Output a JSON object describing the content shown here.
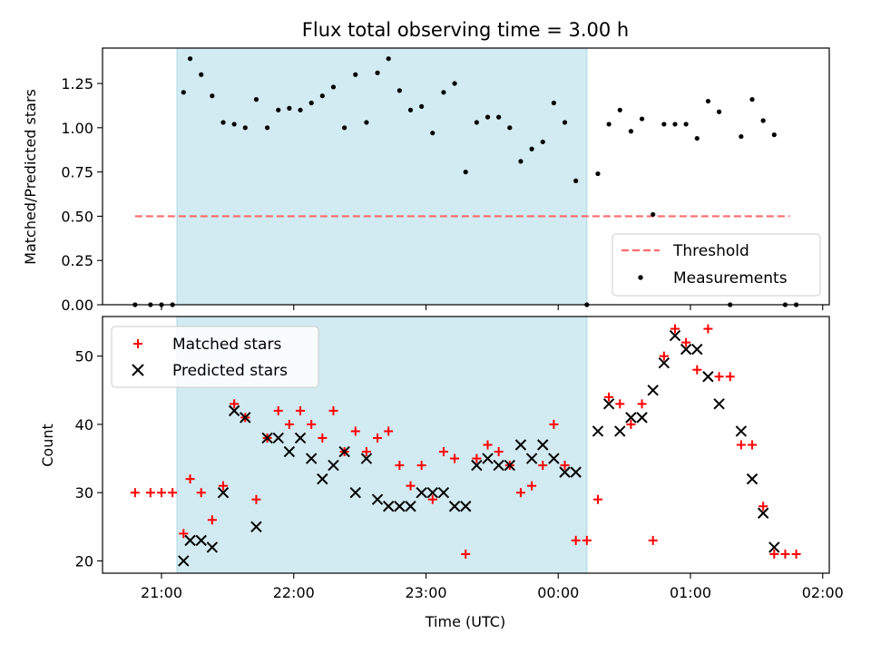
{
  "chart_data": [
    {
      "type": "scatter",
      "title": "Flux total observing time = 3.00 h",
      "xlabel": "",
      "ylabel": "Matched/Predicted stars",
      "ylim": [
        0,
        1.45
      ],
      "yticks": [
        "0.00",
        "0.25",
        "0.50",
        "0.75",
        "1.00",
        "1.25"
      ],
      "grid": false,
      "legend": {
        "placement": "lower right",
        "entries": [
          "Threshold",
          "Measurements"
        ]
      },
      "shaded_interval": {
        "start": "21:07",
        "end": "00:13",
        "color": "#add8e6"
      },
      "threshold": {
        "name": "Threshold",
        "value": 0.5,
        "x_start": "20:48",
        "x_end": "01:45",
        "color": "#ff6b6b"
      },
      "series": [
        {
          "name": "Measurements",
          "color": "#000000",
          "points": [
            [
              "20:48",
              0.0
            ],
            [
              "20:55",
              0.0
            ],
            [
              "21:00",
              0.0
            ],
            [
              "21:05",
              0.0
            ],
            [
              "21:10",
              1.2
            ],
            [
              "21:13",
              1.39
            ],
            [
              "21:18",
              1.3
            ],
            [
              "21:23",
              1.18
            ],
            [
              "21:28",
              1.03
            ],
            [
              "21:33",
              1.02
            ],
            [
              "21:38",
              1.0
            ],
            [
              "21:43",
              1.16
            ],
            [
              "21:48",
              1.0
            ],
            [
              "21:53",
              1.1
            ],
            [
              "21:58",
              1.11
            ],
            [
              "22:03",
              1.1
            ],
            [
              "22:08",
              1.14
            ],
            [
              "22:13",
              1.18
            ],
            [
              "22:18",
              1.23
            ],
            [
              "22:23",
              1.0
            ],
            [
              "22:28",
              1.3
            ],
            [
              "22:33",
              1.03
            ],
            [
              "22:38",
              1.31
            ],
            [
              "22:43",
              1.39
            ],
            [
              "22:48",
              1.21
            ],
            [
              "22:53",
              1.1
            ],
            [
              "22:58",
              1.12
            ],
            [
              "23:03",
              0.97
            ],
            [
              "23:08",
              1.2
            ],
            [
              "23:13",
              1.25
            ],
            [
              "23:18",
              0.75
            ],
            [
              "23:23",
              1.03
            ],
            [
              "23:28",
              1.06
            ],
            [
              "23:33",
              1.06
            ],
            [
              "23:38",
              1.0
            ],
            [
              "23:43",
              0.81
            ],
            [
              "23:48",
              0.88
            ],
            [
              "23:53",
              0.92
            ],
            [
              "23:58",
              1.14
            ],
            [
              "00:03",
              1.03
            ],
            [
              "00:08",
              0.7
            ],
            [
              "00:13",
              0.0
            ],
            [
              "00:18",
              0.74
            ],
            [
              "00:23",
              1.02
            ],
            [
              "00:28",
              1.1
            ],
            [
              "00:33",
              0.98
            ],
            [
              "00:38",
              1.05
            ],
            [
              "00:43",
              0.51
            ],
            [
              "00:48",
              1.02
            ],
            [
              "00:53",
              1.02
            ],
            [
              "00:58",
              1.02
            ],
            [
              "01:03",
              0.94
            ],
            [
              "01:08",
              1.15
            ],
            [
              "01:13",
              1.09
            ],
            [
              "01:18",
              0.0
            ],
            [
              "01:23",
              0.95
            ],
            [
              "01:28",
              1.16
            ],
            [
              "01:33",
              1.04
            ],
            [
              "01:38",
              0.96
            ],
            [
              "01:43",
              0.0
            ],
            [
              "01:48",
              0.0
            ]
          ]
        }
      ]
    },
    {
      "type": "scatter",
      "title": "",
      "xlabel": "Time (UTC)",
      "ylabel": "Count",
      "ylim": [
        18.2,
        55.8
      ],
      "yticks": [
        "20",
        "30",
        "40",
        "50"
      ],
      "xticks": [
        "21:00",
        "22:00",
        "23:00",
        "00:00",
        "01:00",
        "02:00"
      ],
      "grid": false,
      "legend": {
        "placement": "upper left",
        "entries": [
          "Matched stars",
          "Predicted stars"
        ]
      },
      "shaded_interval": {
        "start": "21:07",
        "end": "00:13",
        "color": "#add8e6"
      },
      "series": [
        {
          "name": "Matched stars",
          "marker": "plus",
          "color": "#ff0000",
          "points": [
            [
              "20:48",
              30
            ],
            [
              "20:55",
              30
            ],
            [
              "21:00",
              30
            ],
            [
              "21:05",
              30
            ],
            [
              "21:10",
              24
            ],
            [
              "21:13",
              32
            ],
            [
              "21:18",
              30
            ],
            [
              "21:23",
              26
            ],
            [
              "21:28",
              31
            ],
            [
              "21:33",
              43
            ],
            [
              "21:38",
              41
            ],
            [
              "21:43",
              29
            ],
            [
              "21:48",
              38
            ],
            [
              "21:53",
              42
            ],
            [
              "21:58",
              40
            ],
            [
              "22:03",
              42
            ],
            [
              "22:08",
              40
            ],
            [
              "22:13",
              38
            ],
            [
              "22:18",
              42
            ],
            [
              "22:23",
              36
            ],
            [
              "22:28",
              39
            ],
            [
              "22:33",
              36
            ],
            [
              "22:38",
              38
            ],
            [
              "22:43",
              39
            ],
            [
              "22:48",
              34
            ],
            [
              "22:53",
              31
            ],
            [
              "22:58",
              34
            ],
            [
              "23:03",
              29
            ],
            [
              "23:08",
              36
            ],
            [
              "23:13",
              35
            ],
            [
              "23:18",
              21
            ],
            [
              "23:23",
              35
            ],
            [
              "23:28",
              37
            ],
            [
              "23:33",
              36
            ],
            [
              "23:38",
              34
            ],
            [
              "23:43",
              30
            ],
            [
              "23:48",
              31
            ],
            [
              "23:53",
              34
            ],
            [
              "23:58",
              40
            ],
            [
              "00:03",
              34
            ],
            [
              "00:08",
              23
            ],
            [
              "00:13",
              23
            ],
            [
              "00:18",
              29
            ],
            [
              "00:23",
              44
            ],
            [
              "00:28",
              43
            ],
            [
              "00:33",
              40
            ],
            [
              "00:38",
              43
            ],
            [
              "00:43",
              23
            ],
            [
              "00:48",
              50
            ],
            [
              "00:53",
              54
            ],
            [
              "00:58",
              52
            ],
            [
              "01:03",
              48
            ],
            [
              "01:08",
              54
            ],
            [
              "01:13",
              47
            ],
            [
              "01:18",
              47
            ],
            [
              "01:23",
              37
            ],
            [
              "01:28",
              37
            ],
            [
              "01:33",
              28
            ],
            [
              "01:38",
              21
            ],
            [
              "01:43",
              21
            ],
            [
              "01:48",
              21
            ]
          ]
        },
        {
          "name": "Predicted stars",
          "marker": "x",
          "color": "#000000",
          "points": [
            [
              "21:10",
              20
            ],
            [
              "21:13",
              23
            ],
            [
              "21:18",
              23
            ],
            [
              "21:23",
              22
            ],
            [
              "21:28",
              30
            ],
            [
              "21:33",
              42
            ],
            [
              "21:38",
              41
            ],
            [
              "21:43",
              25
            ],
            [
              "21:48",
              38
            ],
            [
              "21:53",
              38
            ],
            [
              "21:58",
              36
            ],
            [
              "22:03",
              38
            ],
            [
              "22:08",
              35
            ],
            [
              "22:13",
              32
            ],
            [
              "22:18",
              34
            ],
            [
              "22:23",
              36
            ],
            [
              "22:28",
              30
            ],
            [
              "22:33",
              35
            ],
            [
              "22:38",
              29
            ],
            [
              "22:43",
              28
            ],
            [
              "22:48",
              28
            ],
            [
              "22:53",
              28
            ],
            [
              "22:58",
              30
            ],
            [
              "23:03",
              30
            ],
            [
              "23:08",
              30
            ],
            [
              "23:13",
              28
            ],
            [
              "23:18",
              28
            ],
            [
              "23:23",
              34
            ],
            [
              "23:28",
              35
            ],
            [
              "23:33",
              34
            ],
            [
              "23:38",
              34
            ],
            [
              "23:43",
              37
            ],
            [
              "23:48",
              35
            ],
            [
              "23:53",
              37
            ],
            [
              "23:58",
              35
            ],
            [
              "00:03",
              33
            ],
            [
              "00:08",
              33
            ],
            [
              "00:18",
              39
            ],
            [
              "00:23",
              43
            ],
            [
              "00:28",
              39
            ],
            [
              "00:33",
              41
            ],
            [
              "00:38",
              41
            ],
            [
              "00:43",
              45
            ],
            [
              "00:48",
              49
            ],
            [
              "00:53",
              53
            ],
            [
              "00:58",
              51
            ],
            [
              "01:03",
              51
            ],
            [
              "01:08",
              47
            ],
            [
              "01:13",
              43
            ],
            [
              "01:23",
              39
            ],
            [
              "01:28",
              32
            ],
            [
              "01:33",
              27
            ],
            [
              "01:38",
              22
            ]
          ]
        }
      ]
    }
  ]
}
